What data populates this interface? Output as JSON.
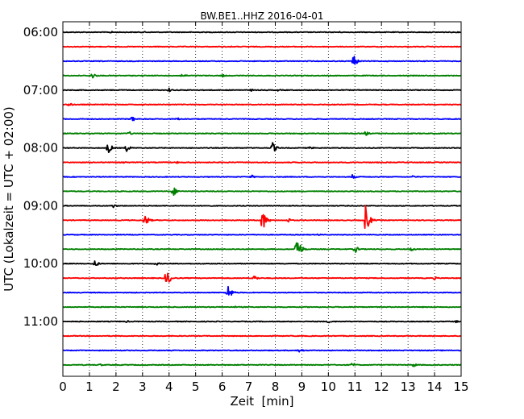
{
  "chart_data": {
    "type": "line",
    "title": "BW.BE1..HHZ 2016-04-01",
    "xlabel": "Zeit  [min]",
    "ylabel": "UTC (Lokalzeit = UTC + 02:00)",
    "xlim": [
      0,
      15
    ],
    "x_ticks": [
      "0",
      "1",
      "2",
      "3",
      "4",
      "5",
      "6",
      "7",
      "8",
      "9",
      "10",
      "11",
      "12",
      "13",
      "14",
      "15"
    ],
    "y_tick_labels": [
      {
        "row": 0,
        "label": "06:00"
      },
      {
        "row": 4,
        "label": "07:00"
      },
      {
        "row": 8,
        "label": "08:00"
      },
      {
        "row": 12,
        "label": "09:00"
      },
      {
        "row": 16,
        "label": "10:00"
      },
      {
        "row": 20,
        "label": "11:00"
      }
    ],
    "grid": "vertical-dotted",
    "row_interval_minutes": 15,
    "colors": [
      "#000000",
      "#ff0000",
      "#0000ff",
      "#008000"
    ],
    "series": [
      {
        "start": "06:00",
        "events": [
          {
            "t": 1.8,
            "amp": 0.15
          },
          {
            "t": 3.1,
            "amp": 0.12
          },
          {
            "t": 10.4,
            "amp": 0.1
          }
        ]
      },
      {
        "start": "06:15",
        "events": [
          {
            "t": 6.3,
            "amp": 0.1
          }
        ]
      },
      {
        "start": "06:30",
        "events": [
          {
            "t": 10.95,
            "amp": 0.8
          }
        ]
      },
      {
        "start": "06:45",
        "events": [
          {
            "t": 1.1,
            "amp": 0.4
          },
          {
            "t": 4.5,
            "amp": 0.3
          },
          {
            "t": 6.0,
            "amp": 0.2
          }
        ]
      },
      {
        "start": "07:00",
        "events": [
          {
            "t": 4.0,
            "amp": 0.25
          },
          {
            "t": 7.1,
            "amp": 0.15
          },
          {
            "t": 8.1,
            "amp": 0.15
          }
        ]
      },
      {
        "start": "07:15",
        "events": [
          {
            "t": 0.2,
            "amp": 0.3
          }
        ]
      },
      {
        "start": "07:30",
        "events": [
          {
            "t": 2.6,
            "amp": 0.35
          },
          {
            "t": 4.3,
            "amp": 0.2
          }
        ]
      },
      {
        "start": "07:45",
        "events": [
          {
            "t": 2.5,
            "amp": 0.25
          },
          {
            "t": 11.4,
            "amp": 0.3
          }
        ]
      },
      {
        "start": "08:00",
        "events": [
          {
            "t": 1.7,
            "amp": 0.8
          },
          {
            "t": 2.4,
            "amp": 0.45
          },
          {
            "t": 7.9,
            "amp": 0.7
          },
          {
            "t": 9.3,
            "amp": 0.2
          }
        ]
      },
      {
        "start": "08:15",
        "events": [
          {
            "t": 2.3,
            "amp": 0.15
          },
          {
            "t": 4.3,
            "amp": 0.12
          }
        ]
      },
      {
        "start": "08:30",
        "events": [
          {
            "t": 7.1,
            "amp": 0.25
          },
          {
            "t": 10.9,
            "amp": 0.3
          },
          {
            "t": 13.2,
            "amp": 0.2
          }
        ]
      },
      {
        "start": "08:45",
        "events": [
          {
            "t": 4.15,
            "amp": 0.65
          }
        ]
      },
      {
        "start": "09:00",
        "events": [
          {
            "t": 1.9,
            "amp": 0.25
          }
        ]
      },
      {
        "start": "09:15",
        "events": [
          {
            "t": 3.1,
            "amp": 0.75
          },
          {
            "t": 7.5,
            "amp": 1.6
          },
          {
            "t": 8.5,
            "amp": 0.3
          },
          {
            "t": 11.4,
            "amp": 1.9
          }
        ]
      },
      {
        "start": "09:30",
        "events": [
          {
            "t": 9.6,
            "amp": 0.15
          }
        ]
      },
      {
        "start": "09:45",
        "events": [
          {
            "t": 8.8,
            "amp": 2.0
          },
          {
            "t": 11.0,
            "amp": 0.5
          },
          {
            "t": 13.1,
            "amp": 0.3
          }
        ]
      },
      {
        "start": "10:00",
        "events": [
          {
            "t": 1.2,
            "amp": 0.5
          },
          {
            "t": 3.5,
            "amp": 0.25
          }
        ]
      },
      {
        "start": "10:15",
        "events": [
          {
            "t": 3.9,
            "amp": 1.2
          },
          {
            "t": 7.2,
            "amp": 0.4
          },
          {
            "t": 14.0,
            "amp": 0.2
          }
        ]
      },
      {
        "start": "10:30",
        "events": [
          {
            "t": 6.2,
            "amp": 1.2
          }
        ]
      },
      {
        "start": "10:45",
        "events": [
          {
            "t": 6.5,
            "amp": 0.1
          }
        ]
      },
      {
        "start": "11:00",
        "events": [
          {
            "t": 2.4,
            "amp": 0.15
          },
          {
            "t": 10.0,
            "amp": 0.2
          },
          {
            "t": 14.8,
            "amp": 0.15
          }
        ]
      },
      {
        "start": "11:15",
        "events": []
      },
      {
        "start": "11:30",
        "events": [
          {
            "t": 8.9,
            "amp": 0.35
          }
        ]
      },
      {
        "start": "11:45",
        "events": [
          {
            "t": 1.4,
            "amp": 0.15
          },
          {
            "t": 10.9,
            "amp": 0.3
          },
          {
            "t": 13.2,
            "amp": 0.3
          }
        ]
      }
    ]
  }
}
